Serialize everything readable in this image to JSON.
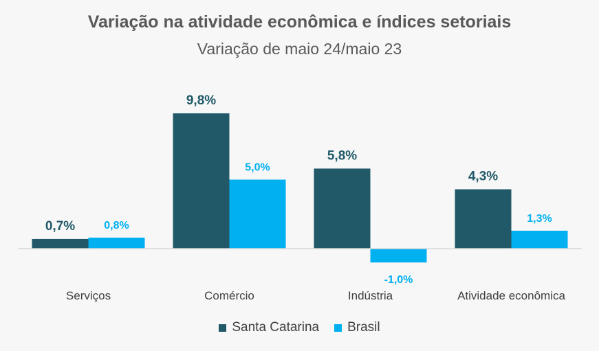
{
  "chart_data": {
    "type": "bar",
    "title": "Variação na atividade econômica e índices setoriais",
    "subtitle": "Variação de maio 24/maio 23",
    "categories": [
      "Serviços",
      "Comércio",
      "Indústria",
      "Atividade econômica"
    ],
    "series": [
      {
        "name": "Santa Catarina",
        "values": [
          0.7,
          9.8,
          5.8,
          4.3
        ],
        "labels": [
          "0,7%",
          "9,8%",
          "5,8%",
          "4,3%"
        ],
        "color": "#215968"
      },
      {
        "name": "Brasil",
        "values": [
          0.8,
          5.0,
          -1.0,
          1.3
        ],
        "labels": [
          "0,8%",
          "5,0%",
          "-1,0%",
          "1,3%"
        ],
        "color": "#00b0f0"
      }
    ],
    "ylim": [
      -1.0,
      9.8
    ],
    "grid": false,
    "legend_position": "bottom"
  },
  "colors": {
    "axis": "#d9d9d9",
    "category_text": "#404040"
  }
}
